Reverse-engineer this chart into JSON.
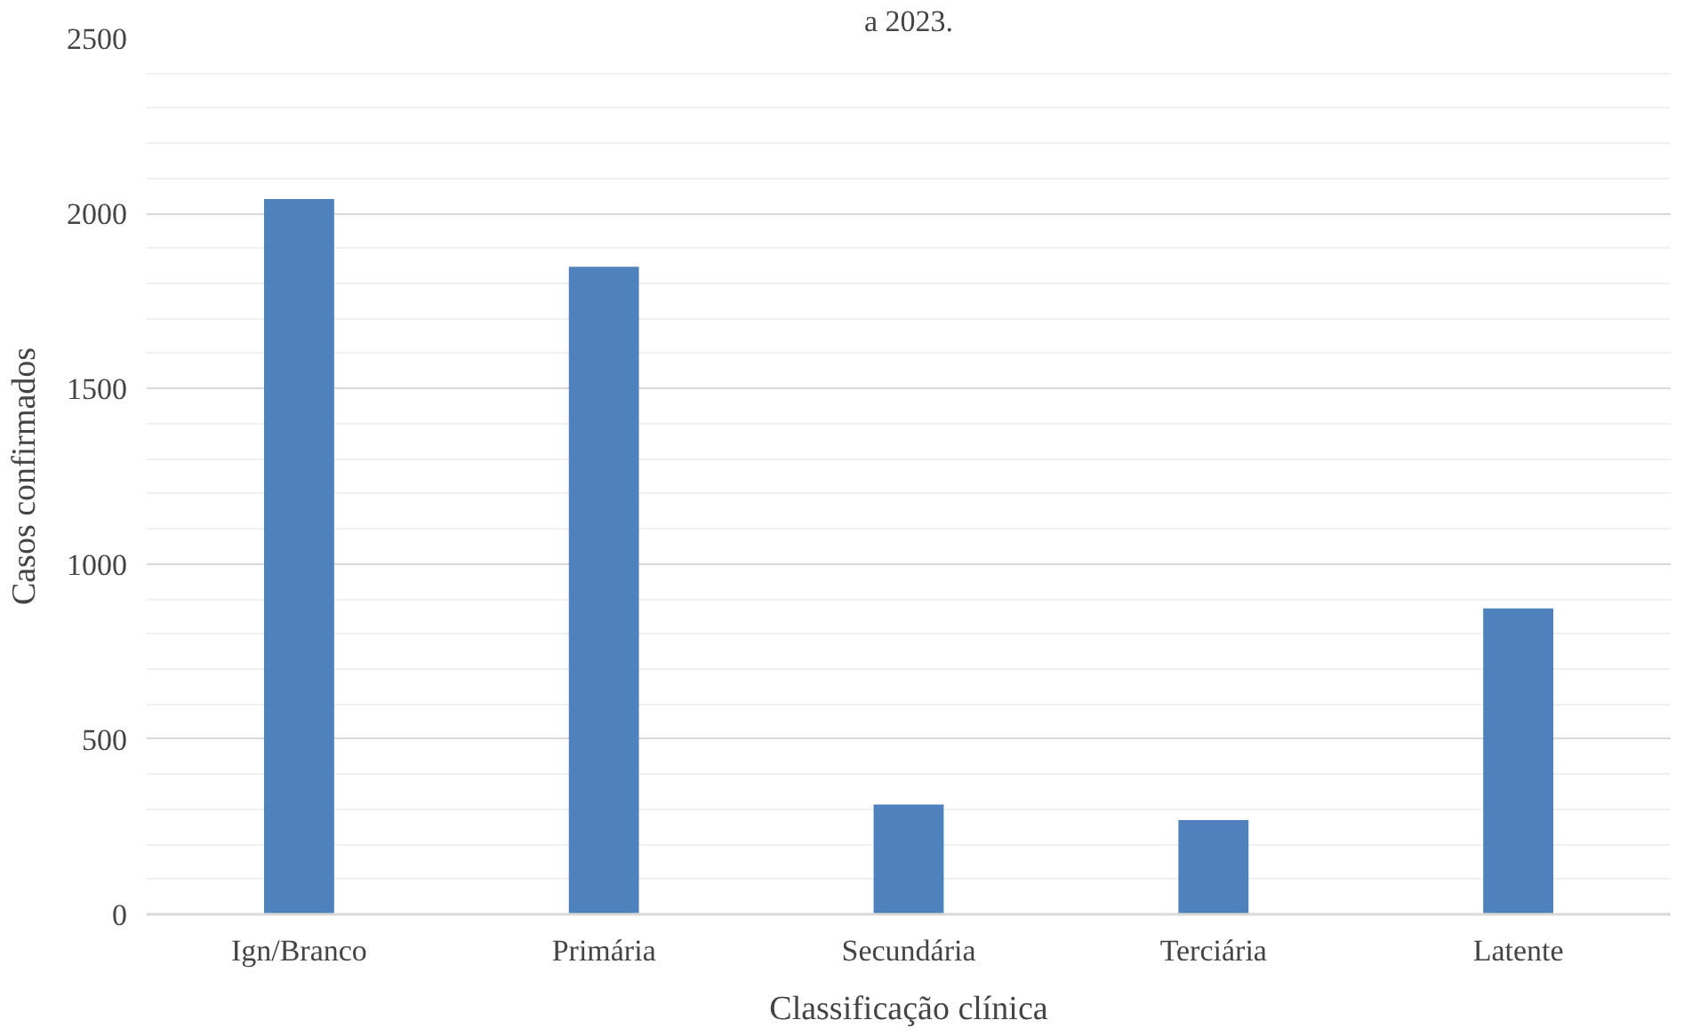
{
  "chart_data": {
    "type": "bar",
    "title": "a 2023.",
    "xlabel": "Classificação clínica",
    "ylabel": "Casos confirmados",
    "categories": [
      "Ign/Branco",
      "Primária",
      "Secundária",
      "Terciária",
      "Latente"
    ],
    "values": [
      2041,
      1848,
      313,
      269,
      873
    ],
    "color": "#4f81bd",
    "ylim": [
      0,
      2500
    ],
    "yticks": [
      0,
      500,
      1000,
      1500,
      2000,
      2500
    ],
    "grid": "y"
  }
}
